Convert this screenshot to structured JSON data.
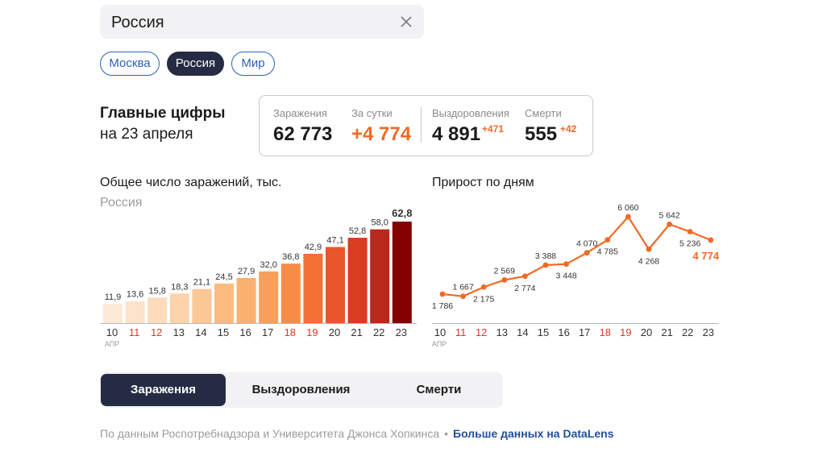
{
  "search": {
    "value": "Россия"
  },
  "regions": [
    {
      "label": "Москва",
      "active": false
    },
    {
      "label": "Россия",
      "active": true
    },
    {
      "label": "Мир",
      "active": false
    }
  ],
  "headline": {
    "line1": "Главные цифры",
    "line2": "на 23 апреля"
  },
  "stats": {
    "infected": {
      "label": "Заражения",
      "value": "62 773"
    },
    "daily": {
      "label": "За сутки",
      "value": "+4 774"
    },
    "recovered": {
      "label": "Выздоровления",
      "value": "4 891",
      "delta": "+471"
    },
    "deaths": {
      "label": "Смерти",
      "value": "555",
      "delta": "+42"
    }
  },
  "colors": {
    "accent": "#f06a24",
    "dark": "#262b44",
    "link": "#1f4f9e",
    "weekend": "#d93a2b"
  },
  "chart_data": [
    {
      "type": "bar",
      "title": "Общее число заражений, тыс.",
      "subtitle": "Россия",
      "categories": [
        "10",
        "11",
        "12",
        "13",
        "14",
        "15",
        "16",
        "17",
        "18",
        "19",
        "20",
        "21",
        "22",
        "23"
      ],
      "weekend": [
        false,
        true,
        true,
        false,
        false,
        false,
        false,
        false,
        true,
        true,
        false,
        false,
        false,
        false
      ],
      "first_month": "АПР",
      "values": [
        11.9,
        13.6,
        15.8,
        18.3,
        21.1,
        24.5,
        27.9,
        32.0,
        36.8,
        42.9,
        47.1,
        52.8,
        58.0,
        62.8
      ],
      "labels": [
        "11,9",
        "13,6",
        "15,8",
        "18,3",
        "21,1",
        "24,5",
        "27,9",
        "32,0",
        "36,8",
        "42,9",
        "47,1",
        "52,8",
        "58,0",
        "62,8"
      ],
      "colors": [
        "#fde9d8",
        "#fde3cc",
        "#fcdcbd",
        "#fcd3aa",
        "#fbc794",
        "#fbbb7f",
        "#fab06e",
        "#fa9f5a",
        "#f78c47",
        "#f27034",
        "#e9562a",
        "#d73e22",
        "#b9281a",
        "#850000"
      ]
    },
    {
      "type": "line",
      "title": "Прирост по дням",
      "categories": [
        "10",
        "11",
        "12",
        "13",
        "14",
        "15",
        "16",
        "17",
        "18",
        "19",
        "20",
        "21",
        "22",
        "23"
      ],
      "weekend": [
        false,
        true,
        true,
        false,
        false,
        false,
        false,
        false,
        true,
        true,
        false,
        false,
        false,
        false
      ],
      "first_month": "АПР",
      "values": [
        1786,
        1667,
        2175,
        2569,
        2774,
        3388,
        3448,
        4070,
        4785,
        6060,
        4268,
        5642,
        5236,
        4774
      ],
      "labels": [
        "1 786",
        "1 667",
        "2 175",
        "2 569",
        "2 774",
        "3 388",
        "3 448",
        "4 070",
        "4 785",
        "6 060",
        "4 268",
        "5 642",
        "5 236",
        "4 774"
      ],
      "label_pos": [
        "below",
        "above",
        "below",
        "above",
        "below",
        "above",
        "below",
        "above",
        "below",
        "above",
        "below",
        "above",
        "below",
        "last"
      ]
    }
  ],
  "tabs": [
    {
      "label": "Заражения",
      "active": true
    },
    {
      "label": "Выздоровления",
      "active": false
    },
    {
      "label": "Смерти",
      "active": false
    }
  ],
  "footer": {
    "source": "По данным Роспотребнадзора и Университета Джонса Хопкинса",
    "dot": "•",
    "link": "Больше данных на DataLens"
  }
}
